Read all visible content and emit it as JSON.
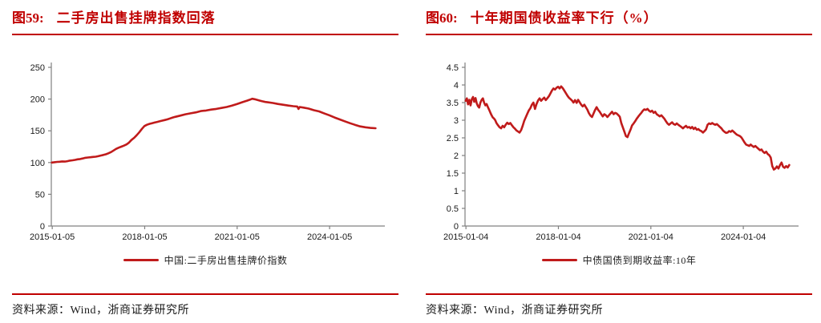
{
  "footer": {
    "source": "资料来源：Wind，浙商证券研究所"
  },
  "colors": {
    "accent_red": "#c00000",
    "series_red": "#c01b1b",
    "axis_gray": "#808080",
    "tick_text": "#1a1a1a"
  },
  "chart_data": [
    {
      "type": "line",
      "fig_label": "图59:",
      "title": "二手房出售挂牌指数回落",
      "series_name": "中国:二手房出售挂牌价指数",
      "color": "#c01b1b",
      "grid": false,
      "legend_position": "bottom",
      "xlabel": "",
      "ylabel": "",
      "ylim": [
        0,
        250
      ],
      "y_ticks": [
        0,
        50,
        100,
        150,
        200,
        250
      ],
      "xlim": [
        2014.98,
        2025.62
      ],
      "x_ticks": [
        {
          "pos": 2015.01,
          "label": "2015-01-05"
        },
        {
          "pos": 2018.01,
          "label": "2018-01-05"
        },
        {
          "pos": 2021.01,
          "label": "2021-01-05"
        },
        {
          "pos": 2024.01,
          "label": "2024-01-05"
        }
      ],
      "points": [
        [
          2015.0,
          100
        ],
        [
          2015.08,
          100.5
        ],
        [
          2015.17,
          101
        ],
        [
          2015.25,
          101.3
        ],
        [
          2015.33,
          101.8
        ],
        [
          2015.42,
          101.5
        ],
        [
          2015.5,
          102.2
        ],
        [
          2015.58,
          103
        ],
        [
          2015.67,
          103.5
        ],
        [
          2015.75,
          104.2
        ],
        [
          2015.83,
          105
        ],
        [
          2015.92,
          105.5
        ],
        [
          2016.0,
          106.5
        ],
        [
          2016.08,
          107.5
        ],
        [
          2016.17,
          108
        ],
        [
          2016.25,
          108.3
        ],
        [
          2016.33,
          108.8
        ],
        [
          2016.42,
          109.2
        ],
        [
          2016.5,
          110
        ],
        [
          2016.58,
          111
        ],
        [
          2016.67,
          112
        ],
        [
          2016.75,
          113
        ],
        [
          2016.83,
          114.5
        ],
        [
          2016.92,
          116.5
        ],
        [
          2017.0,
          119
        ],
        [
          2017.08,
          121.5
        ],
        [
          2017.17,
          123.5
        ],
        [
          2017.25,
          125
        ],
        [
          2017.33,
          126.5
        ],
        [
          2017.42,
          128.5
        ],
        [
          2017.5,
          131.5
        ],
        [
          2017.58,
          135.5
        ],
        [
          2017.67,
          139
        ],
        [
          2017.75,
          143
        ],
        [
          2017.83,
          147.5
        ],
        [
          2017.92,
          153
        ],
        [
          2018.0,
          157.5
        ],
        [
          2018.08,
          159.5
        ],
        [
          2018.17,
          161
        ],
        [
          2018.25,
          162
        ],
        [
          2018.33,
          163
        ],
        [
          2018.42,
          164
        ],
        [
          2018.5,
          165
        ],
        [
          2018.58,
          166
        ],
        [
          2018.67,
          167
        ],
        [
          2018.75,
          168
        ],
        [
          2018.83,
          169.5
        ],
        [
          2018.92,
          171
        ],
        [
          2019.0,
          172
        ],
        [
          2019.17,
          174
        ],
        [
          2019.33,
          176
        ],
        [
          2019.5,
          177.5
        ],
        [
          2019.67,
          179
        ],
        [
          2019.83,
          181
        ],
        [
          2020.0,
          182
        ],
        [
          2020.17,
          183.5
        ],
        [
          2020.33,
          184.5
        ],
        [
          2020.5,
          186
        ],
        [
          2020.67,
          187.5
        ],
        [
          2020.83,
          189.5
        ],
        [
          2021.0,
          192
        ],
        [
          2021.17,
          195
        ],
        [
          2021.33,
          197.5
        ],
        [
          2021.42,
          199
        ],
        [
          2021.5,
          200.5
        ],
        [
          2021.58,
          199.8
        ],
        [
          2021.67,
          198.5
        ],
        [
          2021.75,
          197.5
        ],
        [
          2021.83,
          196.5
        ],
        [
          2021.92,
          195.5
        ],
        [
          2022.0,
          195
        ],
        [
          2022.17,
          193.8
        ],
        [
          2022.33,
          192.3
        ],
        [
          2022.5,
          191
        ],
        [
          2022.67,
          189.8
        ],
        [
          2022.83,
          188.8
        ],
        [
          2022.96,
          188.2
        ],
        [
          2023.0,
          184.5
        ],
        [
          2023.04,
          187.5
        ],
        [
          2023.17,
          186.5
        ],
        [
          2023.33,
          185
        ],
        [
          2023.5,
          182.5
        ],
        [
          2023.67,
          180.5
        ],
        [
          2023.83,
          177.5
        ],
        [
          2024.0,
          174.5
        ],
        [
          2024.17,
          171
        ],
        [
          2024.33,
          168
        ],
        [
          2024.5,
          165
        ],
        [
          2024.67,
          162
        ],
        [
          2024.83,
          159.5
        ],
        [
          2025.0,
          157
        ],
        [
          2025.17,
          155.5
        ],
        [
          2025.33,
          154.5
        ],
        [
          2025.5,
          154
        ]
      ]
    },
    {
      "type": "line",
      "fig_label": "图60:",
      "title": "十年期国债收益率下行（%）",
      "series_name": "中债国债到期收益率:10年",
      "color": "#c01b1b",
      "grid": false,
      "legend_position": "bottom",
      "xlabel": "",
      "ylabel": "",
      "ylim": [
        0,
        4.5
      ],
      "y_ticks": [
        0,
        0.5,
        1,
        1.5,
        2,
        2.5,
        3,
        3.5,
        4,
        4.5
      ],
      "xlim": [
        2014.98,
        2025.62
      ],
      "x_ticks": [
        {
          "pos": 2015.01,
          "label": "2015-01-04"
        },
        {
          "pos": 2018.01,
          "label": "2018-01-04"
        },
        {
          "pos": 2021.01,
          "label": "2021-01-04"
        },
        {
          "pos": 2024.01,
          "label": "2024-01-04"
        }
      ],
      "points": [
        [
          2015.0,
          3.55
        ],
        [
          2015.04,
          3.62
        ],
        [
          2015.08,
          3.45
        ],
        [
          2015.12,
          3.58
        ],
        [
          2015.16,
          3.42
        ],
        [
          2015.2,
          3.6
        ],
        [
          2015.24,
          3.66
        ],
        [
          2015.28,
          3.52
        ],
        [
          2015.32,
          3.63
        ],
        [
          2015.36,
          3.48
        ],
        [
          2015.4,
          3.4
        ],
        [
          2015.44,
          3.36
        ],
        [
          2015.48,
          3.5
        ],
        [
          2015.52,
          3.58
        ],
        [
          2015.56,
          3.62
        ],
        [
          2015.6,
          3.5
        ],
        [
          2015.64,
          3.42
        ],
        [
          2015.68,
          3.46
        ],
        [
          2015.72,
          3.38
        ],
        [
          2015.76,
          3.3
        ],
        [
          2015.8,
          3.22
        ],
        [
          2015.84,
          3.14
        ],
        [
          2015.88,
          3.08
        ],
        [
          2015.92,
          3.05
        ],
        [
          2015.96,
          3.0
        ],
        [
          2016.0,
          2.92
        ],
        [
          2016.05,
          2.86
        ],
        [
          2016.1,
          2.8
        ],
        [
          2016.15,
          2.77
        ],
        [
          2016.2,
          2.84
        ],
        [
          2016.25,
          2.8
        ],
        [
          2016.3,
          2.87
        ],
        [
          2016.35,
          2.93
        ],
        [
          2016.4,
          2.89
        ],
        [
          2016.45,
          2.92
        ],
        [
          2016.5,
          2.86
        ],
        [
          2016.55,
          2.8
        ],
        [
          2016.6,
          2.76
        ],
        [
          2016.65,
          2.71
        ],
        [
          2016.7,
          2.68
        ],
        [
          2016.75,
          2.65
        ],
        [
          2016.8,
          2.72
        ],
        [
          2016.85,
          2.84
        ],
        [
          2016.9,
          2.98
        ],
        [
          2016.95,
          3.08
        ],
        [
          2017.0,
          3.18
        ],
        [
          2017.05,
          3.28
        ],
        [
          2017.1,
          3.34
        ],
        [
          2017.15,
          3.44
        ],
        [
          2017.2,
          3.5
        ],
        [
          2017.25,
          3.32
        ],
        [
          2017.3,
          3.46
        ],
        [
          2017.35,
          3.56
        ],
        [
          2017.4,
          3.62
        ],
        [
          2017.45,
          3.55
        ],
        [
          2017.5,
          3.6
        ],
        [
          2017.55,
          3.64
        ],
        [
          2017.6,
          3.57
        ],
        [
          2017.65,
          3.62
        ],
        [
          2017.7,
          3.68
        ],
        [
          2017.75,
          3.76
        ],
        [
          2017.8,
          3.84
        ],
        [
          2017.85,
          3.9
        ],
        [
          2017.9,
          3.87
        ],
        [
          2017.95,
          3.92
        ],
        [
          2018.0,
          3.95
        ],
        [
          2018.05,
          3.9
        ],
        [
          2018.1,
          3.96
        ],
        [
          2018.15,
          3.91
        ],
        [
          2018.2,
          3.84
        ],
        [
          2018.25,
          3.77
        ],
        [
          2018.3,
          3.7
        ],
        [
          2018.35,
          3.64
        ],
        [
          2018.4,
          3.6
        ],
        [
          2018.45,
          3.56
        ],
        [
          2018.5,
          3.5
        ],
        [
          2018.55,
          3.57
        ],
        [
          2018.6,
          3.49
        ],
        [
          2018.65,
          3.58
        ],
        [
          2018.7,
          3.51
        ],
        [
          2018.75,
          3.44
        ],
        [
          2018.8,
          3.39
        ],
        [
          2018.85,
          3.44
        ],
        [
          2018.9,
          3.37
        ],
        [
          2018.95,
          3.3
        ],
        [
          2019.0,
          3.2
        ],
        [
          2019.05,
          3.13
        ],
        [
          2019.1,
          3.09
        ],
        [
          2019.15,
          3.19
        ],
        [
          2019.2,
          3.29
        ],
        [
          2019.25,
          3.37
        ],
        [
          2019.3,
          3.29
        ],
        [
          2019.35,
          3.24
        ],
        [
          2019.4,
          3.17
        ],
        [
          2019.45,
          3.11
        ],
        [
          2019.5,
          3.17
        ],
        [
          2019.55,
          3.14
        ],
        [
          2019.6,
          3.09
        ],
        [
          2019.65,
          3.14
        ],
        [
          2019.7,
          3.19
        ],
        [
          2019.75,
          3.24
        ],
        [
          2019.8,
          3.17
        ],
        [
          2019.85,
          3.21
        ],
        [
          2019.9,
          3.19
        ],
        [
          2019.95,
          3.15
        ],
        [
          2020.0,
          3.1
        ],
        [
          2020.05,
          2.92
        ],
        [
          2020.1,
          2.8
        ],
        [
          2020.15,
          2.68
        ],
        [
          2020.2,
          2.55
        ],
        [
          2020.25,
          2.52
        ],
        [
          2020.3,
          2.63
        ],
        [
          2020.35,
          2.73
        ],
        [
          2020.4,
          2.85
        ],
        [
          2020.45,
          2.91
        ],
        [
          2020.5,
          2.97
        ],
        [
          2020.55,
          3.04
        ],
        [
          2020.6,
          3.1
        ],
        [
          2020.65,
          3.16
        ],
        [
          2020.7,
          3.21
        ],
        [
          2020.75,
          3.27
        ],
        [
          2020.8,
          3.31
        ],
        [
          2020.85,
          3.29
        ],
        [
          2020.9,
          3.32
        ],
        [
          2020.95,
          3.27
        ],
        [
          2021.0,
          3.24
        ],
        [
          2021.05,
          3.27
        ],
        [
          2021.1,
          3.21
        ],
        [
          2021.15,
          3.24
        ],
        [
          2021.2,
          3.17
        ],
        [
          2021.25,
          3.14
        ],
        [
          2021.3,
          3.11
        ],
        [
          2021.35,
          3.14
        ],
        [
          2021.4,
          3.09
        ],
        [
          2021.45,
          3.04
        ],
        [
          2021.5,
          2.97
        ],
        [
          2021.55,
          2.91
        ],
        [
          2021.6,
          2.87
        ],
        [
          2021.65,
          2.91
        ],
        [
          2021.7,
          2.94
        ],
        [
          2021.75,
          2.89
        ],
        [
          2021.8,
          2.87
        ],
        [
          2021.85,
          2.91
        ],
        [
          2021.9,
          2.87
        ],
        [
          2021.95,
          2.84
        ],
        [
          2022.0,
          2.81
        ],
        [
          2022.05,
          2.77
        ],
        [
          2022.1,
          2.81
        ],
        [
          2022.15,
          2.84
        ],
        [
          2022.2,
          2.79
        ],
        [
          2022.25,
          2.81
        ],
        [
          2022.3,
          2.77
        ],
        [
          2022.35,
          2.81
        ],
        [
          2022.4,
          2.75
        ],
        [
          2022.45,
          2.79
        ],
        [
          2022.5,
          2.73
        ],
        [
          2022.55,
          2.75
        ],
        [
          2022.6,
          2.71
        ],
        [
          2022.65,
          2.69
        ],
        [
          2022.7,
          2.65
        ],
        [
          2022.75,
          2.69
        ],
        [
          2022.8,
          2.74
        ],
        [
          2022.85,
          2.87
        ],
        [
          2022.9,
          2.91
        ],
        [
          2022.95,
          2.89
        ],
        [
          2023.0,
          2.92
        ],
        [
          2023.05,
          2.89
        ],
        [
          2023.1,
          2.87
        ],
        [
          2023.15,
          2.89
        ],
        [
          2023.2,
          2.85
        ],
        [
          2023.25,
          2.81
        ],
        [
          2023.3,
          2.77
        ],
        [
          2023.35,
          2.71
        ],
        [
          2023.4,
          2.67
        ],
        [
          2023.45,
          2.64
        ],
        [
          2023.5,
          2.65
        ],
        [
          2023.55,
          2.69
        ],
        [
          2023.6,
          2.67
        ],
        [
          2023.65,
          2.71
        ],
        [
          2023.7,
          2.67
        ],
        [
          2023.75,
          2.63
        ],
        [
          2023.8,
          2.59
        ],
        [
          2023.85,
          2.57
        ],
        [
          2023.9,
          2.55
        ],
        [
          2023.95,
          2.51
        ],
        [
          2024.0,
          2.44
        ],
        [
          2024.05,
          2.37
        ],
        [
          2024.1,
          2.31
        ],
        [
          2024.15,
          2.29
        ],
        [
          2024.2,
          2.27
        ],
        [
          2024.25,
          2.31
        ],
        [
          2024.3,
          2.27
        ],
        [
          2024.35,
          2.24
        ],
        [
          2024.4,
          2.27
        ],
        [
          2024.45,
          2.23
        ],
        [
          2024.5,
          2.19
        ],
        [
          2024.55,
          2.15
        ],
        [
          2024.6,
          2.17
        ],
        [
          2024.65,
          2.11
        ],
        [
          2024.7,
          2.07
        ],
        [
          2024.75,
          2.11
        ],
        [
          2024.8,
          2.04
        ],
        [
          2024.85,
          2.01
        ],
        [
          2024.9,
          1.94
        ],
        [
          2024.95,
          1.7
        ],
        [
          2025.0,
          1.6
        ],
        [
          2025.05,
          1.63
        ],
        [
          2025.1,
          1.69
        ],
        [
          2025.15,
          1.63
        ],
        [
          2025.2,
          1.73
        ],
        [
          2025.25,
          1.8
        ],
        [
          2025.3,
          1.68
        ],
        [
          2025.35,
          1.65
        ],
        [
          2025.4,
          1.7
        ],
        [
          2025.45,
          1.66
        ],
        [
          2025.5,
          1.73
        ]
      ]
    }
  ]
}
